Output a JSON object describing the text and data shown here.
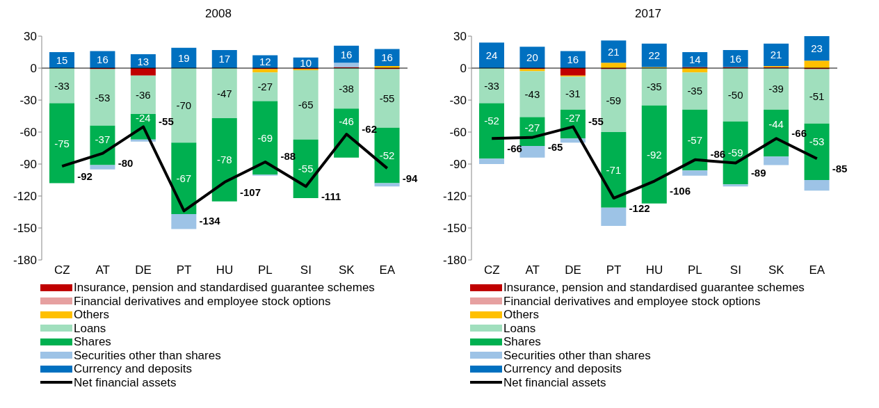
{
  "chart_data": [
    {
      "type": "bar",
      "title": "2008",
      "stacked": true,
      "categories": [
        "CZ",
        "AT",
        "DE",
        "PT",
        "HU",
        "PL",
        "SI",
        "SK",
        "EA"
      ],
      "ylim": [
        -180,
        30
      ],
      "yticks": [
        -180,
        -150,
        -120,
        -90,
        -60,
        -30,
        0,
        30
      ],
      "grid": false,
      "legend": "bottom",
      "ref_lines": [
        {
          "axis": "y",
          "value": 0,
          "color": "#000000"
        }
      ],
      "series": [
        {
          "name": "Insurance, pension and standardised guarantee schemes",
          "color": "#c00000",
          "values": [
            null,
            -1,
            -7,
            null,
            null,
            -1,
            -1,
            1,
            -1
          ]
        },
        {
          "name": "Financial derivatives and employee stock options",
          "color": "#e6a0a0",
          "values": [
            null,
            null,
            null,
            null,
            null,
            null,
            null,
            null,
            null
          ]
        },
        {
          "name": "Others",
          "color": "#ffc000",
          "values": [
            null,
            null,
            null,
            null,
            null,
            -3,
            -1,
            null,
            2
          ]
        },
        {
          "name": "Loans",
          "color": "#a0dfbd",
          "values": [
            -33,
            -53,
            -36,
            -70,
            -47,
            -27,
            -65,
            -38,
            -55
          ],
          "value_labels": [
            "-33",
            "-53",
            "-36",
            "-70",
            "-47",
            "-27",
            "-65",
            "-38",
            "-55"
          ]
        },
        {
          "name": "Shares",
          "color": "#00b050",
          "values": [
            -75,
            -37,
            -24,
            -67,
            -78,
            -69,
            -55,
            -46,
            -52
          ],
          "value_labels": [
            "-75",
            "-37",
            "-24",
            "-67",
            "-78",
            "-69",
            "-55",
            "-46",
            "-52"
          ]
        },
        {
          "name": "Securities other than shares",
          "color": "#9dc3e6",
          "values": [
            null,
            -4,
            -2,
            -14,
            null,
            -1,
            null,
            4,
            -3
          ]
        },
        {
          "name": "Currency and deposits",
          "color": "#0070c0",
          "values": [
            15,
            16,
            13,
            19,
            17,
            12,
            10,
            16,
            16
          ],
          "value_labels": [
            "15",
            "16",
            "13",
            "19",
            "17",
            "12",
            "10",
            "16",
            "16"
          ]
        },
        {
          "name": "Net financial assets",
          "type": "line",
          "color": "#000000",
          "values": [
            -92,
            -80,
            -55,
            -134,
            -107,
            -88,
            -111,
            -62,
            -94
          ],
          "value_labels": [
            "-92",
            "-80",
            "-55",
            "-134",
            "-107",
            "-88",
            "-111",
            "-62",
            "-94"
          ]
        }
      ]
    },
    {
      "type": "bar",
      "title": "2017",
      "stacked": true,
      "categories": [
        "CZ",
        "AT",
        "DE",
        "PT",
        "HU",
        "PL",
        "SI",
        "SK",
        "EA"
      ],
      "ylim": [
        -180,
        30
      ],
      "yticks": [
        -180,
        -150,
        -120,
        -90,
        -60,
        -30,
        0,
        30
      ],
      "grid": false,
      "legend": "bottom",
      "ref_lines": [
        {
          "axis": "y",
          "value": 0,
          "color": "#000000"
        }
      ],
      "series": [
        {
          "name": "Insurance, pension and standardised guarantee schemes",
          "color": "#c00000",
          "values": [
            null,
            -1,
            -7,
            -1,
            null,
            1,
            1,
            1,
            -1
          ]
        },
        {
          "name": "Financial derivatives and employee stock options",
          "color": "#e6a0a0",
          "values": [
            null,
            null,
            null,
            null,
            null,
            null,
            null,
            null,
            null
          ]
        },
        {
          "name": "Others",
          "color": "#ffc000",
          "values": [
            null,
            -2,
            -1,
            5,
            1,
            -4,
            null,
            1,
            7
          ]
        },
        {
          "name": "Loans",
          "color": "#a0dfbd",
          "values": [
            -33,
            -43,
            -31,
            -59,
            -35,
            -35,
            -50,
            -39,
            -51
          ],
          "value_labels": [
            "-33",
            "-43",
            "-31",
            "-59",
            "-35",
            "-35",
            "-50",
            "-39",
            "-51"
          ]
        },
        {
          "name": "Shares",
          "color": "#00b050",
          "values": [
            -52,
            -27,
            -27,
            -71,
            -92,
            -57,
            -59,
            -44,
            -53
          ],
          "value_labels": [
            "-52",
            "-27",
            "-27",
            "-71",
            "-92",
            "-57",
            "-59",
            "-44",
            "-53"
          ]
        },
        {
          "name": "Securities other than shares",
          "color": "#9dc3e6",
          "values": [
            -5,
            -11,
            -4,
            -17,
            null,
            -5,
            -2,
            -8,
            -10
          ]
        },
        {
          "name": "Currency and deposits",
          "color": "#0070c0",
          "values": [
            24,
            20,
            16,
            21,
            22,
            14,
            16,
            21,
            23
          ],
          "value_labels": [
            "24",
            "20",
            "16",
            "21",
            "22",
            "14",
            "16",
            "21",
            "23"
          ]
        },
        {
          "name": "Net financial assets",
          "type": "line",
          "color": "#000000",
          "values": [
            -66,
            -65,
            -55,
            -122,
            -106,
            -86,
            -89,
            -66,
            -85
          ],
          "value_labels": [
            "-66",
            "-65",
            "-55",
            "-122",
            "-106",
            "-86",
            "-89",
            "-66",
            "-85"
          ]
        }
      ]
    }
  ]
}
